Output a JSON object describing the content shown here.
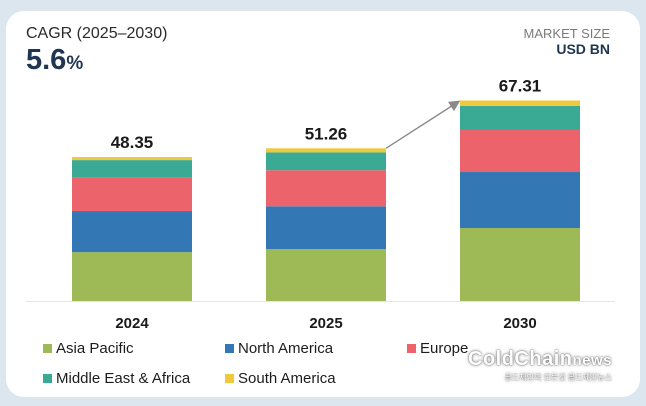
{
  "header": {
    "cagr_label": "CAGR (2025–2030)",
    "cagr_value": "5.6",
    "cagr_unit": "%",
    "market_size_label": "MARKET SIZE",
    "market_size_unit": "USD BN"
  },
  "watermark": {
    "main": "ColdChain",
    "suffix": "news",
    "sub": "콜드체인의 모든것 콜드체인뉴스"
  },
  "colors": {
    "Asia Pacific": "#9dba56",
    "North America": "#3477b5",
    "Europe": "#ec636c",
    "Middle East & Africa": "#3aaa94",
    "South America": "#f0c93a"
  },
  "chart_data": {
    "type": "bar",
    "stacked": true,
    "title": "",
    "xlabel": "",
    "ylabel": "Market Size (USD BN)",
    "categories": [
      "2024",
      "2025",
      "2030"
    ],
    "totals": [
      48.35,
      51.26,
      67.31
    ],
    "total_labels": [
      "48.35",
      "51.26",
      "67.31"
    ],
    "series": [
      {
        "name": "Asia Pacific",
        "values": [
          16.4,
          17.4,
          24.5
        ]
      },
      {
        "name": "North America",
        "values": [
          13.8,
          14.4,
          18.8
        ]
      },
      {
        "name": "Europe",
        "values": [
          11.4,
          12.1,
          14.1
        ]
      },
      {
        "name": "Middle East & Africa",
        "values": [
          5.7,
          6.0,
          8.1
        ]
      },
      {
        "name": "South America",
        "values": [
          1.05,
          1.36,
          1.81
        ]
      }
    ],
    "ylim": [
      0,
      67.31
    ],
    "grid": false,
    "legend": "bottom",
    "annotation": "growth arrow from 2025 to 2030"
  },
  "legend": [
    {
      "label": "Asia Pacific"
    },
    {
      "label": "North America"
    },
    {
      "label": "Europe"
    },
    {
      "label": "Middle East & Africa"
    },
    {
      "label": "South America"
    }
  ]
}
